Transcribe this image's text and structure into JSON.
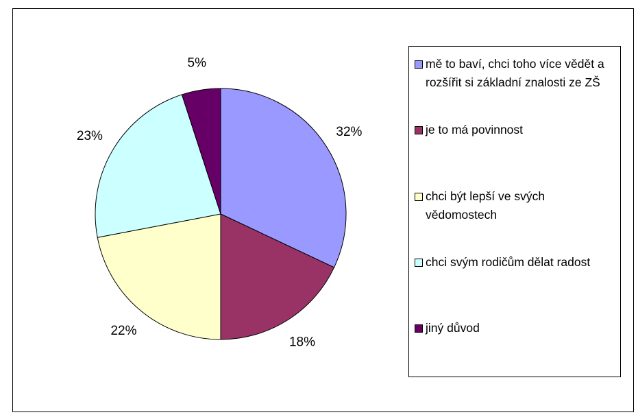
{
  "chart_data": {
    "type": "pie",
    "categories": [
      "mě to baví, chci toho více vědět a rozšířit si základní znalosti ze ZŠ",
      "je to má povinnost",
      "chci být lepší ve svých vědomostech",
      "chci svým rodičům dělat radost",
      "jiný důvod"
    ],
    "values": [
      32,
      18,
      22,
      23,
      5
    ],
    "value_labels": [
      "32%",
      "18%",
      "22%",
      "23%",
      "5%"
    ],
    "colors": [
      "#9999ff",
      "#993366",
      "#ffffcc",
      "#ccffff",
      "#660066"
    ],
    "legend": "right"
  }
}
